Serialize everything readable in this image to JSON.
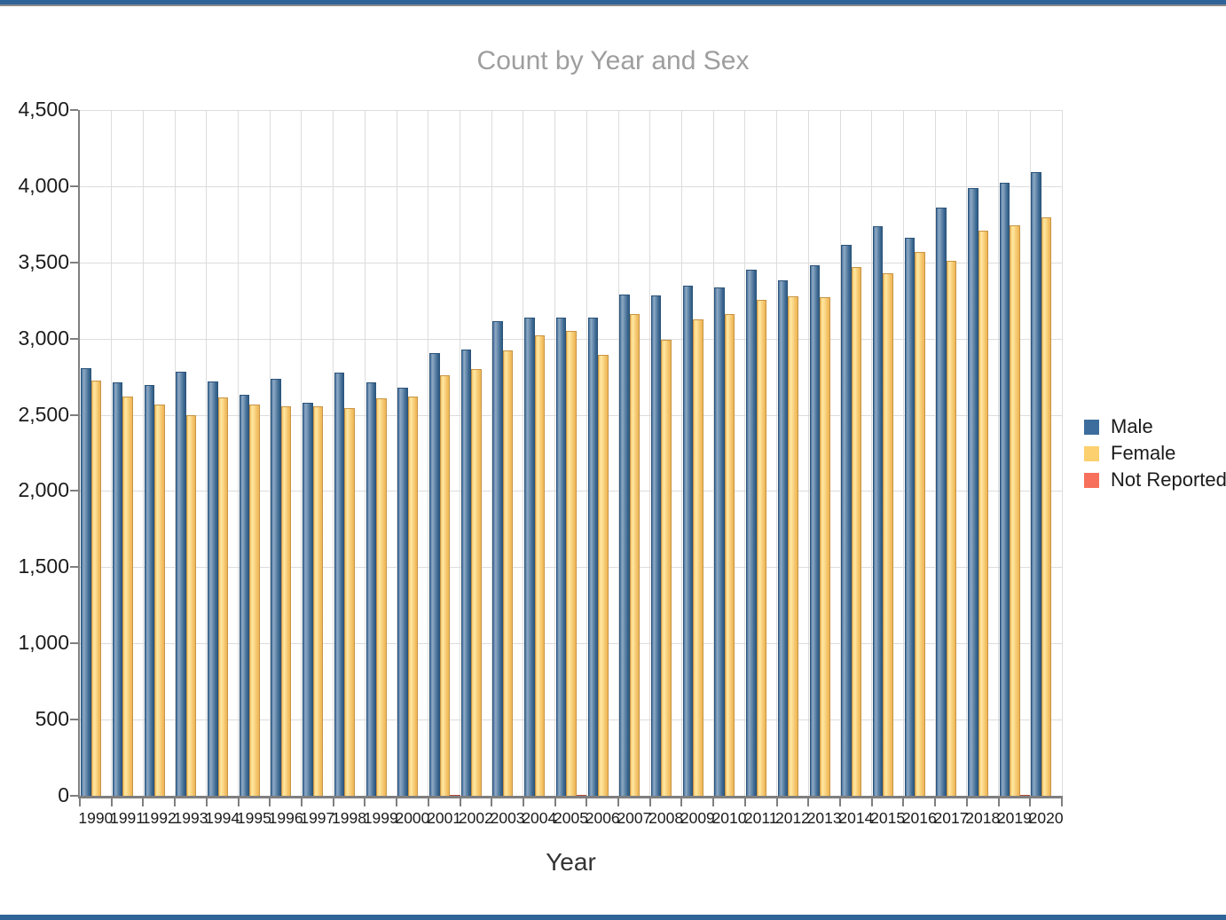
{
  "window": {
    "top_strip_color": "#2e6497",
    "bottom_strip_color": "#2e6497"
  },
  "chart_data": {
    "type": "bar",
    "title": "Count by Year and Sex",
    "xlabel": "Year",
    "ylabel": "",
    "ylim": [
      0,
      4500
    ],
    "ytick_step": 500,
    "yticks": [
      "0",
      "500",
      "1,000",
      "1,500",
      "2,000",
      "2,500",
      "3,000",
      "3,500",
      "4,000",
      "4,500"
    ],
    "grid": true,
    "legend_position": "right",
    "categories": [
      1990,
      1991,
      1992,
      1993,
      1994,
      1995,
      1996,
      1997,
      1998,
      1999,
      2000,
      2001,
      2002,
      2003,
      2004,
      2005,
      2006,
      2007,
      2008,
      2009,
      2010,
      2011,
      2012,
      2013,
      2014,
      2015,
      2016,
      2017,
      2018,
      2019,
      2020
    ],
    "series": [
      {
        "name": "Male",
        "color": "#3c6d9c",
        "values": [
          2805,
          2715,
          2695,
          2785,
          2720,
          2630,
          2735,
          2580,
          2775,
          2715,
          2680,
          2905,
          2930,
          3115,
          3140,
          3140,
          3140,
          3290,
          3285,
          3345,
          3335,
          3450,
          3385,
          3480,
          3615,
          3735,
          3660,
          3860,
          3990,
          4020,
          4090
        ]
      },
      {
        "name": "Female",
        "color": "#fcd06e",
        "values": [
          2725,
          2620,
          2570,
          2495,
          2615,
          2570,
          2555,
          2555,
          2545,
          2610,
          2620,
          2760,
          2800,
          2920,
          3020,
          3050,
          2895,
          3160,
          2995,
          3125,
          3160,
          3255,
          3280,
          3270,
          3470,
          3430,
          3570,
          3510,
          3710,
          3745,
          3795
        ]
      },
      {
        "name": "Not Reported",
        "color": "#f7705b",
        "values": [
          0,
          0,
          0,
          0,
          0,
          0,
          0,
          0,
          0,
          0,
          0,
          8,
          0,
          0,
          0,
          8,
          0,
          0,
          0,
          0,
          0,
          0,
          0,
          0,
          0,
          0,
          0,
          0,
          0,
          8,
          0
        ]
      }
    ]
  }
}
